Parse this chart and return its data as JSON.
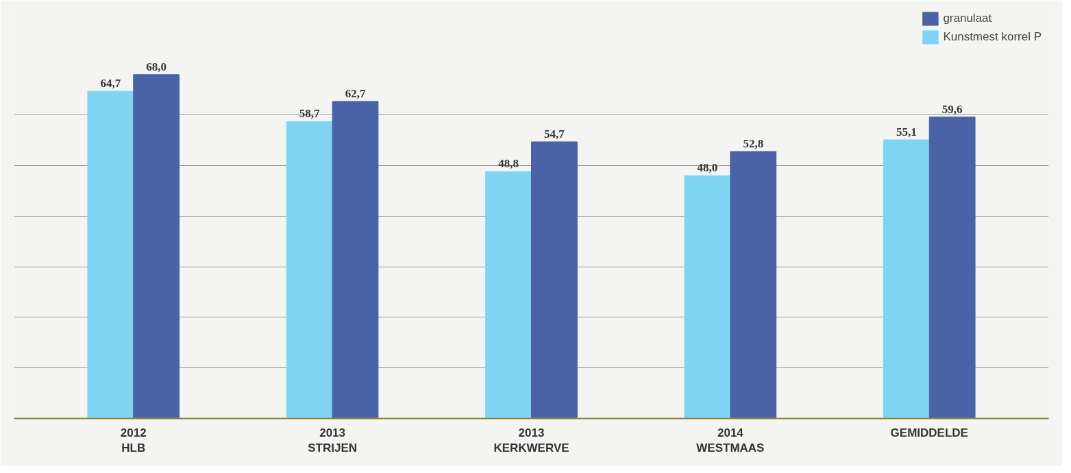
{
  "chart_data": {
    "type": "bar",
    "categories": [
      "2012\nHLB",
      "2013\nSTRIJEN",
      "2013\nKERKWERVE",
      "2014\nWESTMAAS",
      "GEMIDDELDE"
    ],
    "series": [
      {
        "name": "Kunstmest korrel P",
        "color": "#7fd4f4",
        "values": [
          64.7,
          58.7,
          48.8,
          48.0,
          55.1
        ],
        "value_labels": [
          "64,7",
          "58,7",
          "48,8",
          "48,0",
          "55,1"
        ]
      },
      {
        "name": "granulaat",
        "color": "#4a62a6",
        "values": [
          68.0,
          62.7,
          54.7,
          52.8,
          59.6
        ],
        "value_labels": [
          "68,0",
          "62,7",
          "54,7",
          "52,8",
          "59,6"
        ]
      }
    ],
    "ylim": [
      0,
      82
    ],
    "yticks": [
      {
        "value": 10,
        "label": null
      },
      {
        "value": 20,
        "label": null
      },
      {
        "value": 30,
        "label": null
      },
      {
        "value": 40,
        "label": null
      },
      {
        "value": 50,
        "label": null
      },
      {
        "value": 60,
        "label": null
      }
    ],
    "grid": "y",
    "legend": "top right",
    "tick_labels": "x"
  }
}
